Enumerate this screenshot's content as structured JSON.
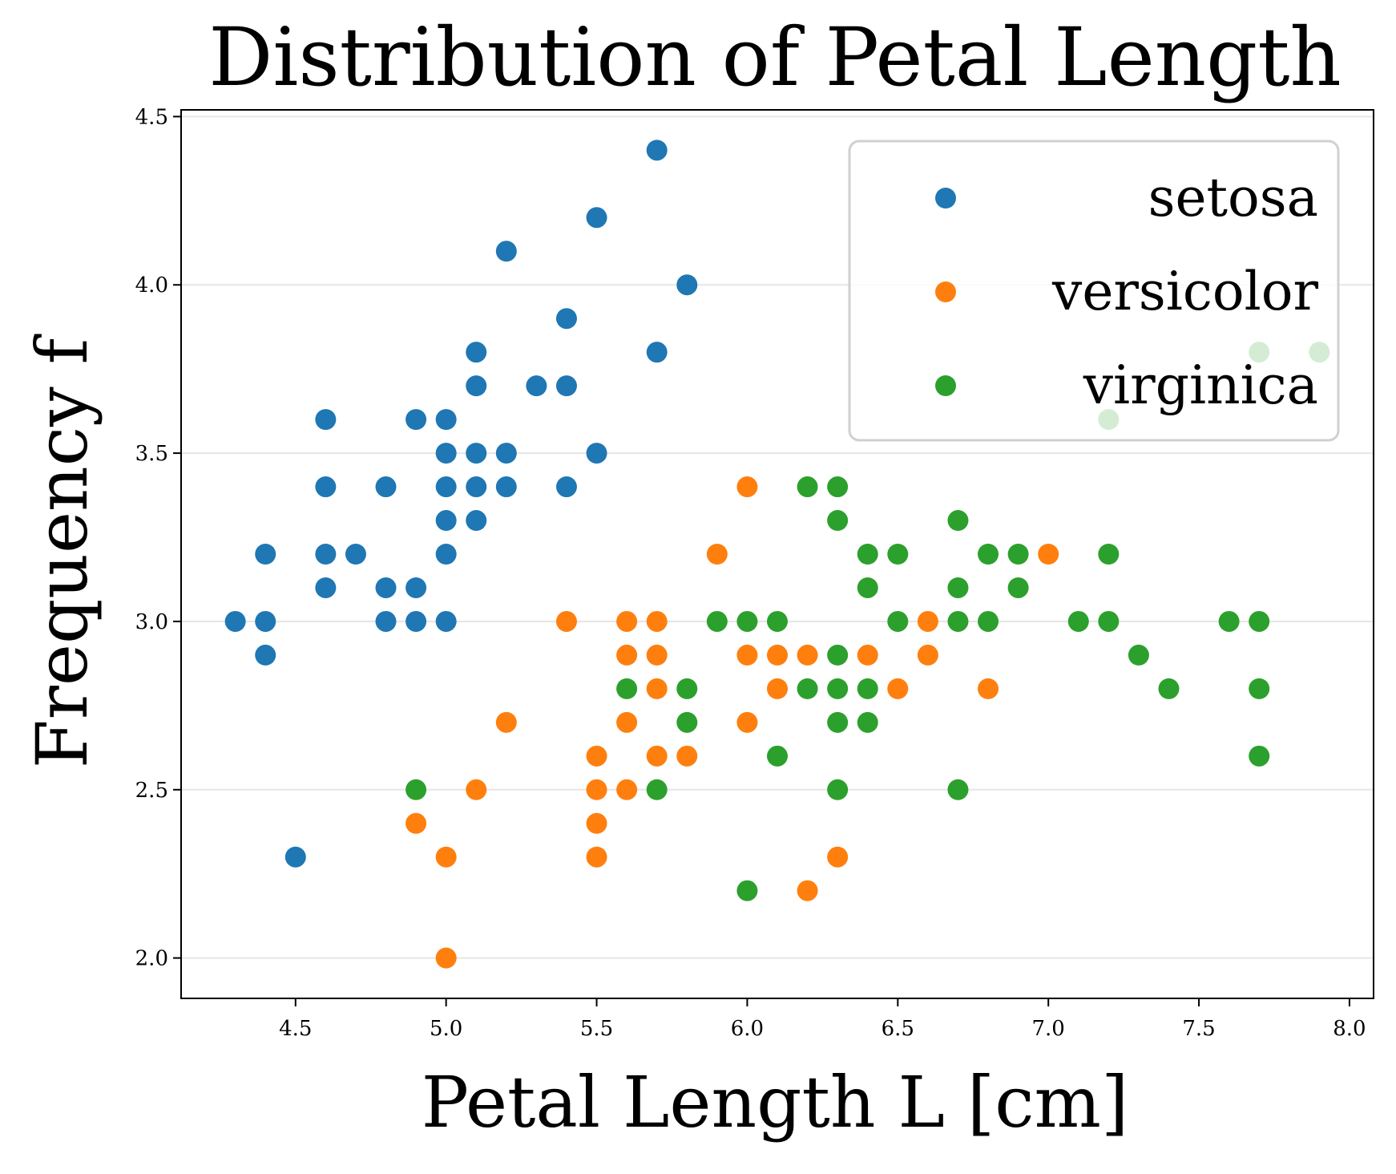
{
  "chart_data": {
    "type": "scatter",
    "title": "Distribution of Petal Length",
    "xlabel": "Petal Length L [cm]",
    "ylabel": "Frequency f",
    "xlim": [
      4.12,
      8.08
    ],
    "ylim": [
      1.88,
      4.52
    ],
    "xticks": [
      "4.5",
      "5.0",
      "5.5",
      "6.0",
      "6.5",
      "7.0",
      "7.5",
      "8.0"
    ],
    "yticks": [
      "2.0",
      "2.5",
      "3.0",
      "3.5",
      "4.0",
      "4.5"
    ],
    "grid": "horizontal",
    "legend": "top-right",
    "series": [
      {
        "name": "setosa",
        "color": "#1f77b4",
        "points": [
          [
            4.3,
            3.0
          ],
          [
            4.4,
            3.2
          ],
          [
            4.4,
            3.0
          ],
          [
            4.4,
            2.9
          ],
          [
            4.5,
            2.3
          ],
          [
            4.6,
            3.6
          ],
          [
            4.6,
            3.4
          ],
          [
            4.6,
            3.2
          ],
          [
            4.6,
            3.1
          ],
          [
            4.7,
            3.2
          ],
          [
            4.8,
            3.4
          ],
          [
            4.8,
            3.1
          ],
          [
            4.8,
            3.0
          ],
          [
            4.9,
            3.6
          ],
          [
            4.9,
            3.1
          ],
          [
            4.9,
            3.0
          ],
          [
            5.0,
            3.6
          ],
          [
            5.0,
            3.5
          ],
          [
            5.0,
            3.4
          ],
          [
            5.0,
            3.3
          ],
          [
            5.0,
            3.2
          ],
          [
            5.0,
            3.0
          ],
          [
            5.1,
            3.8
          ],
          [
            5.1,
            3.7
          ],
          [
            5.1,
            3.5
          ],
          [
            5.1,
            3.4
          ],
          [
            5.1,
            3.3
          ],
          [
            5.2,
            4.1
          ],
          [
            5.2,
            3.5
          ],
          [
            5.2,
            3.4
          ],
          [
            5.3,
            3.7
          ],
          [
            5.4,
            3.9
          ],
          [
            5.4,
            3.7
          ],
          [
            5.4,
            3.4
          ],
          [
            5.5,
            4.2
          ],
          [
            5.5,
            3.5
          ],
          [
            5.7,
            4.4
          ],
          [
            5.7,
            3.8
          ],
          [
            5.8,
            4.0
          ]
        ]
      },
      {
        "name": "versicolor",
        "color": "#ff7f0e",
        "points": [
          [
            4.9,
            2.4
          ],
          [
            5.0,
            2.3
          ],
          [
            5.0,
            2.0
          ],
          [
            5.1,
            2.5
          ],
          [
            5.2,
            2.7
          ],
          [
            5.4,
            3.0
          ],
          [
            5.5,
            2.6
          ],
          [
            5.5,
            2.5
          ],
          [
            5.5,
            2.4
          ],
          [
            5.5,
            2.3
          ],
          [
            5.6,
            3.0
          ],
          [
            5.6,
            2.9
          ],
          [
            5.6,
            2.7
          ],
          [
            5.6,
            2.5
          ],
          [
            5.7,
            3.0
          ],
          [
            5.7,
            2.9
          ],
          [
            5.7,
            2.8
          ],
          [
            5.7,
            2.6
          ],
          [
            5.8,
            2.6
          ],
          [
            5.9,
            3.2
          ],
          [
            6.0,
            3.4
          ],
          [
            6.0,
            2.9
          ],
          [
            6.0,
            2.7
          ],
          [
            6.1,
            2.9
          ],
          [
            6.1,
            2.8
          ],
          [
            6.2,
            2.9
          ],
          [
            6.2,
            2.2
          ],
          [
            6.3,
            2.3
          ],
          [
            6.4,
            2.9
          ],
          [
            6.5,
            2.8
          ],
          [
            6.6,
            3.0
          ],
          [
            6.6,
            2.9
          ],
          [
            6.8,
            2.8
          ],
          [
            7.0,
            3.2
          ]
        ]
      },
      {
        "name": "virginica",
        "color": "#2ca02c",
        "points": [
          [
            4.9,
            2.5
          ],
          [
            5.6,
            2.8
          ],
          [
            5.7,
            2.5
          ],
          [
            5.8,
            2.8
          ],
          [
            5.8,
            2.7
          ],
          [
            5.9,
            3.0
          ],
          [
            6.0,
            3.0
          ],
          [
            6.0,
            2.2
          ],
          [
            6.1,
            3.0
          ],
          [
            6.1,
            2.6
          ],
          [
            6.2,
            3.4
          ],
          [
            6.2,
            2.8
          ],
          [
            6.3,
            3.4
          ],
          [
            6.3,
            3.3
          ],
          [
            6.3,
            2.9
          ],
          [
            6.3,
            2.8
          ],
          [
            6.3,
            2.7
          ],
          [
            6.3,
            2.5
          ],
          [
            6.4,
            3.2
          ],
          [
            6.4,
            3.1
          ],
          [
            6.4,
            2.8
          ],
          [
            6.4,
            2.7
          ],
          [
            6.5,
            3.2
          ],
          [
            6.5,
            3.0
          ],
          [
            6.7,
            3.3
          ],
          [
            6.7,
            3.1
          ],
          [
            6.7,
            3.0
          ],
          [
            6.7,
            2.5
          ],
          [
            6.8,
            3.2
          ],
          [
            6.8,
            3.0
          ],
          [
            6.9,
            3.2
          ],
          [
            6.9,
            3.1
          ],
          [
            7.1,
            3.0
          ],
          [
            7.2,
            3.6
          ],
          [
            7.2,
            3.2
          ],
          [
            7.2,
            3.0
          ],
          [
            7.3,
            2.9
          ],
          [
            7.4,
            2.8
          ],
          [
            7.6,
            3.0
          ],
          [
            7.7,
            3.8
          ],
          [
            7.7,
            3.0
          ],
          [
            7.7,
            2.8
          ],
          [
            7.7,
            2.6
          ],
          [
            7.9,
            3.8
          ]
        ]
      }
    ]
  }
}
